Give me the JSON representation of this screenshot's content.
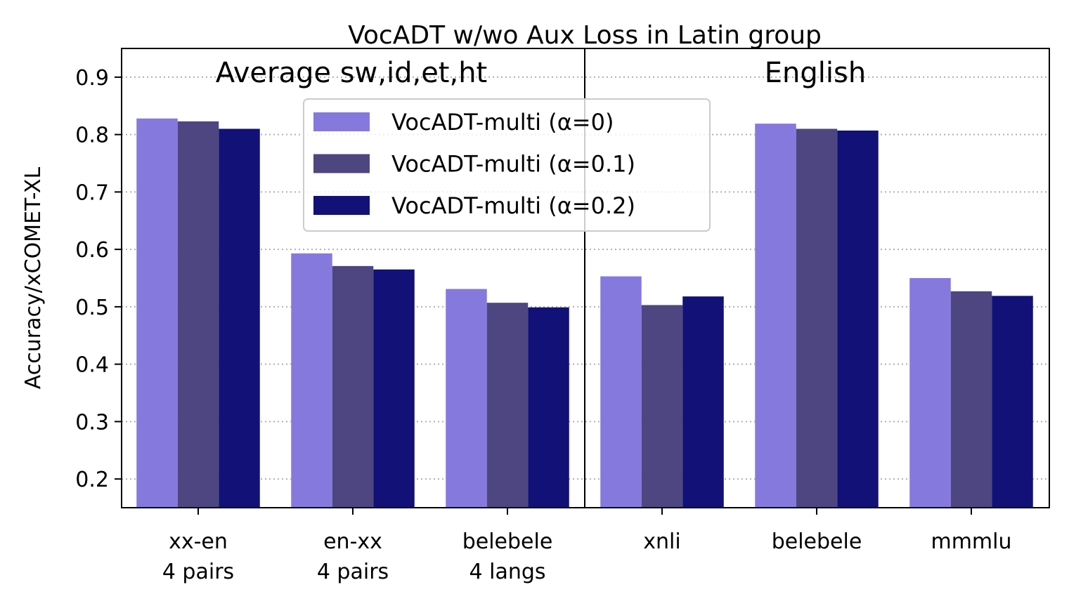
{
  "chart_data": {
    "type": "bar",
    "title": "VocADT w/wo Aux Loss in Latin group",
    "ylabel": "Accuracy/xCOMET-XL",
    "xlabel": "",
    "ylim": [
      0.15,
      0.95
    ],
    "yticks": [
      "0.2",
      "0.3",
      "0.4",
      "0.5",
      "0.6",
      "0.7",
      "0.8",
      "0.9"
    ],
    "grid": "horizontal dotted",
    "legend_position": "top-center",
    "panels": [
      {
        "label": "Average sw,id,et,ht",
        "categories": [
          "xx-en|4 pairs",
          "en-xx|4 pairs",
          "belebele|4 langs"
        ]
      },
      {
        "label": "English",
        "categories": [
          "xnli",
          "belebele",
          "mmmlu"
        ]
      }
    ],
    "categories": [
      "xx-en|4 pairs",
      "en-xx|4 pairs",
      "belebele|4 langs",
      "xnli",
      "belebele",
      "mmmlu"
    ],
    "series": [
      {
        "name": "VocADT-multi (α=0)",
        "color": "#8679de",
        "values": [
          0.828,
          0.593,
          0.531,
          0.553,
          0.819,
          0.55
        ]
      },
      {
        "name": "VocADT-multi (α=0.1)",
        "color": "#4e4680",
        "values": [
          0.823,
          0.571,
          0.507,
          0.503,
          0.81,
          0.527
        ]
      },
      {
        "name": "VocADT-multi (α=0.2)",
        "color": "#111177",
        "values": [
          0.81,
          0.565,
          0.499,
          0.518,
          0.807,
          0.519
        ]
      }
    ]
  }
}
